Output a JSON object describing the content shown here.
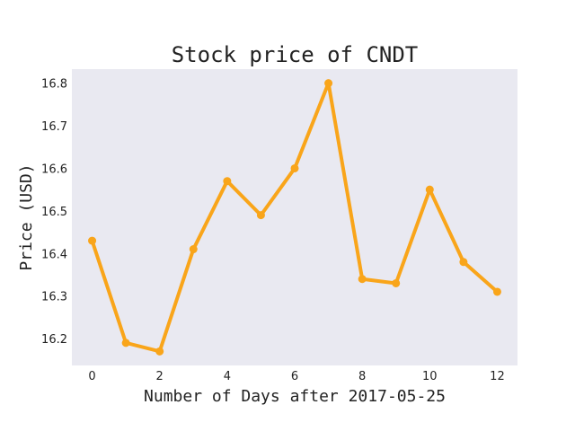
{
  "chart_data": {
    "type": "line",
    "title": "Stock price of CNDT",
    "xlabel": "Number of Days after 2017-05-25",
    "ylabel": "Price (USD)",
    "x": [
      0,
      1,
      2,
      3,
      4,
      5,
      6,
      7,
      8,
      9,
      10,
      11,
      12
    ],
    "series": [
      {
        "values": [
          16.43,
          16.19,
          16.17,
          16.41,
          16.57,
          16.49,
          16.6,
          16.8,
          16.34,
          16.33,
          16.55,
          16.38,
          16.31
        ]
      }
    ],
    "xlim": [
      -0.6,
      12.6
    ],
    "ylim": [
      16.137,
      16.833
    ],
    "x_ticks": [
      0,
      2,
      4,
      6,
      8,
      10,
      12
    ],
    "x_tick_labels": [
      "0",
      "2",
      "4",
      "6",
      "8",
      "10",
      "12"
    ],
    "y_ticks": [
      16.2,
      16.3,
      16.4,
      16.5,
      16.6,
      16.7,
      16.8
    ],
    "y_tick_labels": [
      "16.2",
      "16.3",
      "16.4",
      "16.5",
      "16.6",
      "16.7",
      "16.8"
    ],
    "grid": false,
    "colors": {
      "line": "#f9a51a",
      "plot_background": "#e9e9f1"
    }
  }
}
